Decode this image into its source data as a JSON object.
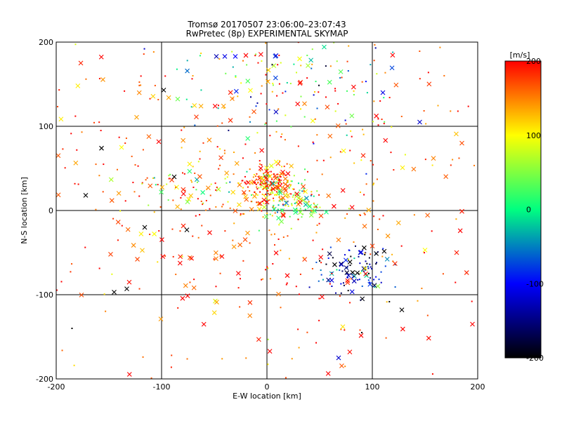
{
  "chart_data": {
    "type": "scatter",
    "title": "Tromsø 20170507 23:06:00–23:07:43",
    "subtitle": "RwPretec (8p) EXPERIMENTAL SKYMAP",
    "xlabel": "E-W location [km]",
    "ylabel": "N-S location [km]",
    "xlim": [
      -200,
      200
    ],
    "ylim": [
      -200,
      200
    ],
    "xticks": [
      -200,
      -100,
      0,
      100,
      200
    ],
    "yticks": [
      -200,
      -100,
      0,
      100,
      200
    ],
    "xtick_labels": [
      "-200",
      "-100",
      "0",
      "100",
      "200"
    ],
    "ytick_labels": [
      "-200",
      "-100",
      "0",
      "100",
      "200"
    ],
    "grid": true,
    "colorbar": {
      "label": "[m/s]",
      "min": -200,
      "max": 200,
      "ticks": [
        200,
        100,
        0,
        -100,
        -200
      ],
      "tick_labels": [
        "200",
        "100",
        "0",
        "-100",
        "-200"
      ],
      "colormap": [
        "#000000",
        "#0000ff",
        "#00ff80",
        "#ffff00",
        "#ff0000"
      ]
    },
    "marker_styles": [
      "dot",
      "cross"
    ],
    "clusters": [
      {
        "center": [
          0,
          30
        ],
        "spread": [
          12,
          10
        ],
        "count": 160,
        "value_mean": 160,
        "value_spread": 60
      },
      {
        "center": [
          20,
          10
        ],
        "spread": [
          15,
          15
        ],
        "count": 110,
        "value_mean": 60,
        "value_spread": 70
      },
      {
        "center": [
          85,
          -70
        ],
        "spread": [
          18,
          14
        ],
        "count": 110,
        "value_mean": -120,
        "value_spread": 70
      },
      {
        "center": [
          30,
          150
        ],
        "spread": [
          55,
          35
        ],
        "count": 140,
        "value_mean": 40,
        "value_spread": 110
      },
      {
        "center": [
          -75,
          30
        ],
        "spread": [
          25,
          15
        ],
        "count": 50,
        "value_mean": 110,
        "value_spread": 80
      },
      {
        "center": [
          0,
          0
        ],
        "spread": [
          90,
          75
        ],
        "count": 260,
        "value_mean": 170,
        "value_spread": 40
      },
      {
        "center": [
          0,
          0
        ],
        "spread": [
          200,
          200
        ],
        "count": 200,
        "value_mean": 175,
        "value_spread": 30
      }
    ],
    "highlight_points": [
      {
        "x": -172,
        "y": 18,
        "v": -200,
        "m": "cross"
      },
      {
        "x": -157,
        "y": 74,
        "v": -200,
        "m": "cross"
      },
      {
        "x": -98,
        "y": 143,
        "v": -200,
        "m": "cross"
      },
      {
        "x": -145,
        "y": -97,
        "v": -200,
        "m": "cross"
      },
      {
        "x": -133,
        "y": -93,
        "v": -200,
        "m": "cross"
      },
      {
        "x": 128,
        "y": -118,
        "v": -200,
        "m": "cross"
      },
      {
        "x": -185,
        "y": -140,
        "v": -200,
        "m": "dot"
      },
      {
        "x": -116,
        "y": -20,
        "v": -200,
        "m": "cross"
      },
      {
        "x": -88,
        "y": 40,
        "v": -200,
        "m": "cross"
      },
      {
        "x": -76,
        "y": -23,
        "v": -200,
        "m": "cross"
      },
      {
        "x": 90,
        "y": -145,
        "v": -200,
        "m": "dot"
      },
      {
        "x": 68,
        "y": -175,
        "v": -120,
        "m": "cross"
      },
      {
        "x": 72,
        "y": -138,
        "v": 110,
        "m": "cross"
      },
      {
        "x": 110,
        "y": 140,
        "v": -110,
        "m": "cross"
      },
      {
        "x": 145,
        "y": 105,
        "v": -120,
        "m": "cross"
      },
      {
        "x": -40,
        "y": 183,
        "v": -110,
        "m": "cross"
      },
      {
        "x": -48,
        "y": 183,
        "v": -130,
        "m": "cross"
      },
      {
        "x": -30,
        "y": 183,
        "v": -100,
        "m": "cross"
      },
      {
        "x": 150,
        "y": -47,
        "v": 100,
        "m": "cross"
      },
      {
        "x": 158,
        "y": 62,
        "v": 150,
        "m": "cross"
      },
      {
        "x": 185,
        "y": 80,
        "v": 170,
        "m": "cross"
      },
      {
        "x": -138,
        "y": 75,
        "v": 100,
        "m": "cross"
      },
      {
        "x": 180,
        "y": -50,
        "v": 190,
        "m": "cross"
      },
      {
        "x": 185,
        "y": -1,
        "v": 190,
        "m": "cross"
      },
      {
        "x": 195,
        "y": -135,
        "v": 200,
        "m": "cross"
      }
    ]
  }
}
